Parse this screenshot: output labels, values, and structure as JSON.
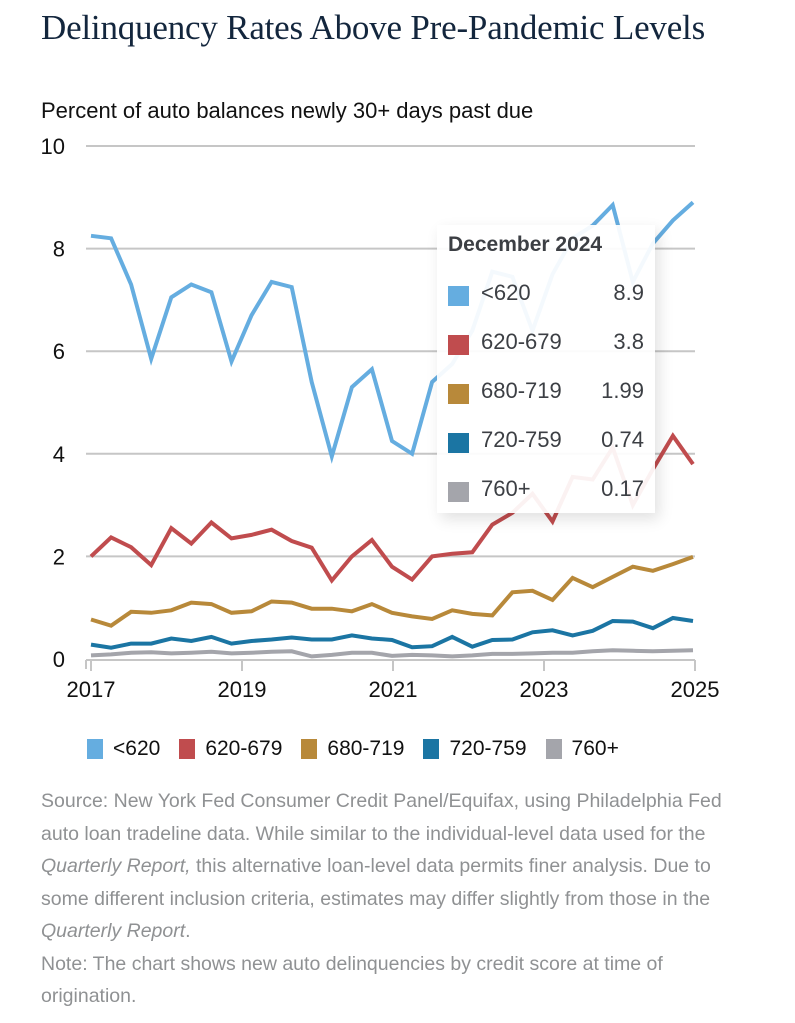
{
  "title": "Delinquency Rates Above Pre-Pandemic Levels",
  "subtitle": "Percent of auto balances newly 30+ days past due",
  "tooltip": {
    "title": "December 2024",
    "rows": [
      {
        "label": "<620",
        "value": "8.9",
        "color": "#65ade0"
      },
      {
        "label": "620-679",
        "value": "3.8",
        "color": "#c04c4e"
      },
      {
        "label": "680-719",
        "value": "1.99",
        "color": "#b8893a"
      },
      {
        "label": "720-759",
        "value": "0.74",
        "color": "#1b75a3"
      },
      {
        "label": "760+",
        "value": "0.17",
        "color": "#a4a5ab"
      }
    ]
  },
  "legend": [
    {
      "label": "<620",
      "color": "#65ade0"
    },
    {
      "label": "620-679",
      "color": "#c04c4e"
    },
    {
      "label": "680-719",
      "color": "#b8893a"
    },
    {
      "label": "720-759",
      "color": "#1b75a3"
    },
    {
      "label": "760+",
      "color": "#a4a5ab"
    }
  ],
  "notes": {
    "source_1": "Source: New York Fed Consumer Credit Panel/Equifax, using Philadelphia Fed auto loan tradeline data. While similar to the individual-level data used for the ",
    "source_italic_1": "Quarterly Report,",
    "source_2": " this alternative loan-level data permits finer analysis. Due to some different inclusion criteria, estimates may differ slightly from those in the ",
    "source_italic_2": "Quarterly Report",
    "source_3": ".",
    "note": "Note: The chart shows new auto delinquencies by credit score at time of origination."
  },
  "chart_data": {
    "type": "line",
    "title": "Delinquency Rates Above Pre-Pandemic Levels",
    "ylabel": "Percent of auto balances newly 30+ days past due",
    "xlabel": "",
    "x_start": 2017.0,
    "x_step": 0.25,
    "xlim": [
      2017,
      2025
    ],
    "ylim": [
      0,
      10
    ],
    "x_ticks": [
      "2017",
      "2019",
      "2021",
      "2023",
      "2025"
    ],
    "x_tick_values": [
      2017,
      2019,
      2021,
      2023,
      2025
    ],
    "y_ticks": [
      "0",
      "2",
      "4",
      "6",
      "8",
      "10"
    ],
    "y_tick_values": [
      0,
      2,
      4,
      6,
      8,
      10
    ],
    "grid": true,
    "highlight_index": 31,
    "series": [
      {
        "name": "<620",
        "color": "#65ade0",
        "values": [
          8.25,
          8.2,
          7.3,
          5.85,
          7.05,
          7.3,
          7.15,
          5.8,
          6.7,
          7.35,
          7.25,
          5.4,
          3.95,
          5.3,
          5.65,
          4.25,
          4.0,
          5.4,
          5.75,
          6.4,
          7.55,
          7.45,
          6.4,
          7.5,
          8.2,
          8.45,
          8.85,
          7.35,
          8.1,
          8.55,
          8.9
        ]
      },
      {
        "name": "620-679",
        "color": "#c04c4e",
        "values": [
          2.0,
          2.37,
          2.18,
          1.83,
          2.55,
          2.25,
          2.66,
          2.35,
          2.42,
          2.52,
          2.3,
          2.17,
          1.53,
          2.0,
          2.32,
          1.8,
          1.55,
          2.0,
          2.05,
          2.08,
          2.62,
          2.85,
          3.22,
          2.68,
          3.55,
          3.5,
          4.12,
          3.0,
          3.7,
          4.35,
          3.8
        ]
      },
      {
        "name": "680-719",
        "color": "#b8893a",
        "values": [
          0.77,
          0.65,
          0.92,
          0.9,
          0.95,
          1.1,
          1.07,
          0.9,
          0.93,
          1.12,
          1.1,
          0.98,
          0.98,
          0.93,
          1.07,
          0.9,
          0.83,
          0.78,
          0.95,
          0.88,
          0.85,
          1.3,
          1.33,
          1.15,
          1.58,
          1.4,
          1.6,
          1.8,
          1.72,
          1.85,
          1.99
        ]
      },
      {
        "name": "720-759",
        "color": "#1b75a3",
        "values": [
          0.28,
          0.22,
          0.3,
          0.3,
          0.4,
          0.35,
          0.43,
          0.3,
          0.35,
          0.38,
          0.42,
          0.38,
          0.38,
          0.46,
          0.4,
          0.37,
          0.23,
          0.25,
          0.43,
          0.24,
          0.37,
          0.38,
          0.52,
          0.56,
          0.46,
          0.55,
          0.74,
          0.73,
          0.6,
          0.8,
          0.74
        ]
      },
      {
        "name": "760+",
        "color": "#a4a5ab",
        "values": [
          0.07,
          0.09,
          0.12,
          0.13,
          0.11,
          0.12,
          0.14,
          0.11,
          0.12,
          0.14,
          0.15,
          0.05,
          0.08,
          0.12,
          0.12,
          0.06,
          0.08,
          0.07,
          0.05,
          0.07,
          0.1,
          0.1,
          0.11,
          0.12,
          0.12,
          0.15,
          0.17,
          0.16,
          0.15,
          0.16,
          0.17
        ]
      }
    ]
  }
}
